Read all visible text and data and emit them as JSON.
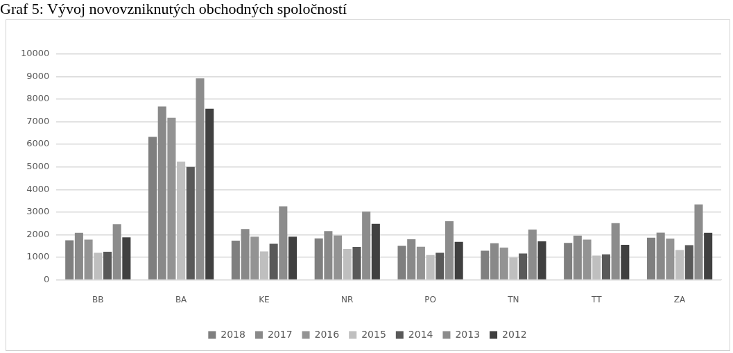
{
  "chart_data": {
    "type": "bar",
    "title": "Graf 5: Vývoj novovzniknutých obchodných spoločností",
    "categories": [
      "BB",
      "BA",
      "KE",
      "NR",
      "PO",
      "TN",
      "TT",
      "ZA"
    ],
    "series": [
      {
        "name": "2018",
        "color": "#7f7f7f",
        "values": [
          1750,
          6330,
          1740,
          1840,
          1510,
          1290,
          1640,
          1870
        ]
      },
      {
        "name": "2017",
        "color": "#898989",
        "values": [
          2080,
          7680,
          2250,
          2160,
          1800,
          1620,
          1960,
          2090
        ]
      },
      {
        "name": "2016",
        "color": "#939393",
        "values": [
          1780,
          7180,
          1910,
          1970,
          1470,
          1430,
          1780,
          1830
        ]
      },
      {
        "name": "2015",
        "color": "#bfbfbf",
        "values": [
          1200,
          5240,
          1260,
          1370,
          1100,
          990,
          1080,
          1320
        ]
      },
      {
        "name": "2014",
        "color": "#595959",
        "values": [
          1250,
          5000,
          1600,
          1460,
          1200,
          1170,
          1130,
          1540
        ]
      },
      {
        "name": "2013",
        "color": "#8c8c8c",
        "values": [
          2470,
          8920,
          3260,
          3030,
          2600,
          2230,
          2510,
          3340
        ]
      },
      {
        "name": "2012",
        "color": "#404040",
        "values": [
          1880,
          7580,
          1910,
          2480,
          1680,
          1710,
          1550,
          2080
        ]
      }
    ],
    "ylim": [
      0,
      10000
    ],
    "yticks": [
      0,
      1000,
      2000,
      3000,
      4000,
      5000,
      6000,
      7000,
      8000,
      9000,
      10000
    ],
    "grid": "y",
    "legend": "bottom"
  }
}
